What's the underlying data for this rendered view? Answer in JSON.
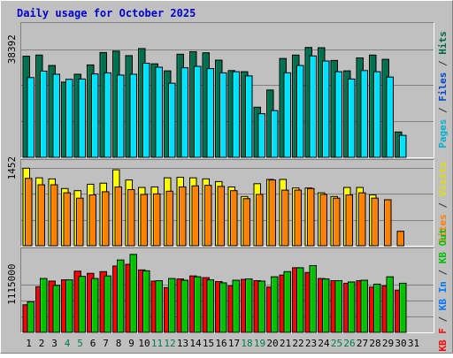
{
  "chart_data": {
    "type": "bar",
    "title": "Daily usage for October 2025",
    "categories": [
      "1",
      "2",
      "3",
      "4",
      "5",
      "6",
      "7",
      "8",
      "9",
      "10",
      "11",
      "12",
      "13",
      "14",
      "15",
      "16",
      "17",
      "18",
      "19",
      "20",
      "21",
      "22",
      "23",
      "24",
      "25",
      "26",
      "27",
      "28",
      "29",
      "30",
      "31"
    ],
    "weekend_days": [
      "4",
      "5",
      "11",
      "12",
      "18",
      "19",
      "25",
      "26"
    ],
    "panels": [
      {
        "name": "requests",
        "tick_label": "38392",
        "tick_value": 38392,
        "ylim": [
          0,
          48000
        ],
        "side_label_parts": [
          {
            "text": "Pages",
            "color": "#00b0cc"
          },
          {
            "text": " / ",
            "color": "#333333"
          },
          {
            "text": "Files",
            "color": "#0044cc"
          },
          {
            "text": " / ",
            "color": "#333333"
          },
          {
            "text": "Hits",
            "color": "#006644"
          }
        ],
        "series": [
          {
            "name": "Hits",
            "color": "#006f4f",
            "values": [
              35900,
              36300,
              32600,
              26700,
              29500,
              32800,
              37200,
              37700,
              36100,
              38600,
              33200,
              30700,
              36600,
              37500,
              37100,
              34500,
              30800,
              30400,
              17800,
              23900,
              35100,
              36300,
              39000,
              38900,
              34400,
              30700,
              35300,
              36300,
              34800,
              9000,
              0
            ]
          },
          {
            "name": "Files",
            "color": "#0078ff",
            "values": [
              0,
              0,
              0,
              0,
              0,
              0,
              0,
              0,
              0,
              0,
              0,
              0,
              0,
              0,
              0,
              0,
              0,
              0,
              0,
              0,
              0,
              0,
              0,
              0,
              0,
              0,
              0,
              0,
              0,
              0,
              0
            ]
          },
          {
            "name": "Pages",
            "color": "#00e0ff",
            "values": [
              28300,
              30600,
              29500,
              27700,
              27800,
              29600,
              30000,
              29200,
              29500,
              33400,
              32000,
              26300,
              31800,
              32300,
              31500,
              30000,
              30400,
              28900,
              15500,
              16600,
              30000,
              32600,
              36000,
              34200,
              30400,
              27800,
              30800,
              30400,
              28500,
              7800,
              0
            ]
          }
        ]
      },
      {
        "name": "visitors",
        "tick_label": "1452",
        "tick_value": 1452,
        "ylim": [
          0,
          1620
        ],
        "side_label_parts": [
          {
            "text": "Sites",
            "color": "#ff8000"
          },
          {
            "text": " / ",
            "color": "#333333"
          },
          {
            "text": "Visits",
            "color": "#e0e000"
          }
        ],
        "series": [
          {
            "name": "Visits",
            "color": "#ffff00",
            "values": [
              1450,
              1270,
              1250,
              1070,
              1030,
              1150,
              1170,
              1420,
              1230,
              1090,
              1100,
              1270,
              1280,
              1270,
              1250,
              1200,
              1100,
              920,
              1160,
              1240,
              1240,
              1080,
              1080,
              990,
              920,
              1090,
              1090,
              950,
              0,
              0,
              0
            ]
          },
          {
            "name": "Sites",
            "color": "#ff8000",
            "values": [
              1260,
              1140,
              1140,
              990,
              890,
              950,
              1010,
              1100,
              1050,
              960,
              970,
              1020,
              1100,
              1120,
              1130,
              1110,
              1030,
              880,
              960,
              1230,
              1040,
              1040,
              1070,
              960,
              890,
              950,
              990,
              890,
              860,
              270,
              0
            ]
          }
        ]
      },
      {
        "name": "traffic",
        "tick_label": "1115000",
        "tick_value": 1115000,
        "ylim": [
          0,
          1970000
        ],
        "side_label_parts": [
          {
            "text": "KB F",
            "color": "#ff0000"
          },
          {
            "text": " / ",
            "color": "#333333"
          },
          {
            "text": "KB In",
            "color": "#0078ff"
          },
          {
            "text": " / ",
            "color": "#333333"
          },
          {
            "text": "KB Out",
            "color": "#00c000"
          }
        ],
        "series": [
          {
            "name": "KB F",
            "color": "#ff0000",
            "values": [
              640000,
              1060000,
              1190000,
              1220000,
              1420000,
              1370000,
              1410000,
              1540000,
              1580000,
              1450000,
              1190000,
              1040000,
              1240000,
              1310000,
              1270000,
              1180000,
              1080000,
              1230000,
              1200000,
              1050000,
              1330000,
              1500000,
              1390000,
              1250000,
              1200000,
              1140000,
              1200000,
              1050000,
              1080000,
              980000,
              0
            ]
          },
          {
            "name": "KB In",
            "color": "#0078ff",
            "values": [
              0,
              0,
              0,
              0,
              0,
              0,
              0,
              0,
              0,
              0,
              0,
              0,
              0,
              0,
              0,
              0,
              0,
              0,
              0,
              0,
              0,
              0,
              0,
              0,
              0,
              0,
              0,
              0,
              0,
              0,
              0
            ]
          },
          {
            "name": "KB Out",
            "color": "#00c000",
            "values": [
              710000,
              1250000,
              1090000,
              1220000,
              1300000,
              1250000,
              1310000,
              1680000,
              1810000,
              1430000,
              1200000,
              1250000,
              1210000,
              1290000,
              1220000,
              1150000,
              1210000,
              1240000,
              1190000,
              1290000,
              1410000,
              1500000,
              1550000,
              1240000,
              1200000,
              1170000,
              1210000,
              1120000,
              1290000,
              1140000,
              0
            ]
          }
        ]
      }
    ],
    "colors": {
      "background": "#c0c0c0",
      "title": "#0000cc",
      "day_label": "#000000",
      "weekend_label": "#007a4a"
    }
  }
}
